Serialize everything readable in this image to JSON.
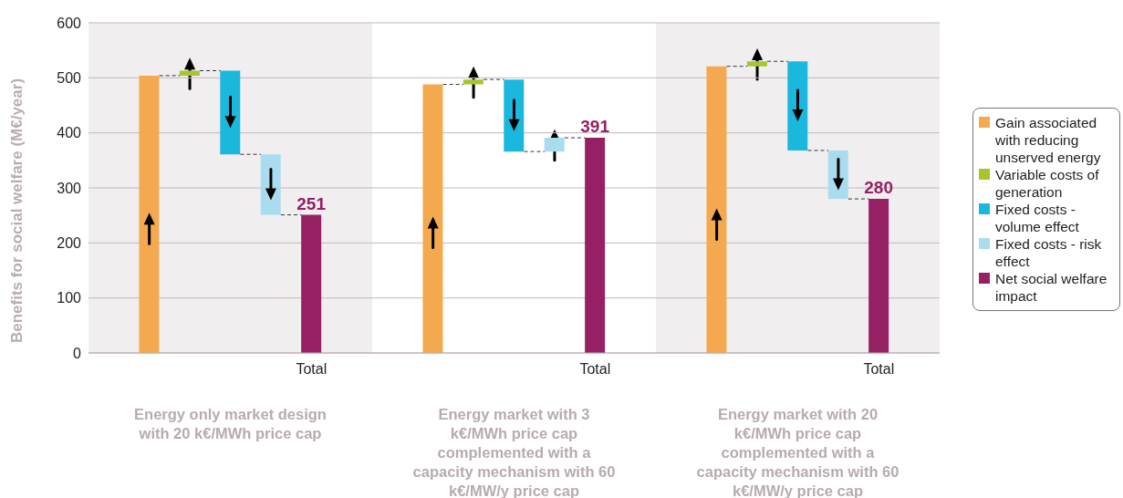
{
  "chart_data": {
    "type": "bar",
    "ylabel": "Benefits for social welfare (M€/year)",
    "categories": [
      null,
      null,
      null,
      null,
      null,
      "Total",
      null,
      null,
      null,
      null,
      null,
      null,
      "Total",
      null,
      null,
      null,
      null,
      null,
      null,
      "Total",
      null
    ],
    "series": [
      {
        "name": "Gain associated with reducing unserved energy",
        "color": "#f5a94f",
        "values": [
          null,
          504,
          null,
          null,
          null,
          null,
          null,
          null,
          488,
          null,
          null,
          null,
          null,
          null,
          null,
          521,
          null,
          null,
          null,
          null,
          null
        ]
      },
      {
        "name": "Variable costs of generation",
        "color": "#a6c52f",
        "values": [
          null,
          null,
          9,
          null,
          null,
          null,
          null,
          null,
          null,
          9,
          null,
          null,
          null,
          null,
          null,
          null,
          9,
          null,
          null,
          null,
          null
        ],
        "base": [
          null,
          null,
          504,
          null,
          null,
          null,
          null,
          null,
          null,
          488,
          null,
          null,
          null,
          null,
          null,
          null,
          521,
          null,
          null,
          null,
          null
        ]
      },
      {
        "name": "Fixed costs - volume effect",
        "color": "#1bb8dd",
        "values": [
          null,
          null,
          null,
          -152,
          null,
          null,
          null,
          null,
          null,
          null,
          -131,
          null,
          null,
          null,
          null,
          null,
          null,
          -162,
          null,
          null,
          null
        ],
        "base": [
          null,
          null,
          null,
          513,
          null,
          null,
          null,
          null,
          null,
          null,
          497,
          null,
          null,
          null,
          null,
          null,
          null,
          530,
          null,
          null,
          null
        ]
      },
      {
        "name": "Fixed costs - risk effect",
        "color": "#aadcf0",
        "values": [
          null,
          null,
          null,
          null,
          -110,
          null,
          null,
          null,
          null,
          null,
          null,
          25,
          null,
          null,
          null,
          null,
          null,
          null,
          -88,
          null,
          null
        ],
        "base": [
          null,
          null,
          null,
          null,
          361,
          null,
          null,
          null,
          null,
          null,
          null,
          366,
          null,
          null,
          null,
          null,
          null,
          null,
          368,
          null,
          null
        ]
      },
      {
        "name": "Net social welfare impact",
        "color": "#952064",
        "values": [
          null,
          null,
          null,
          null,
          null,
          251,
          null,
          null,
          null,
          null,
          null,
          null,
          391,
          null,
          null,
          null,
          null,
          null,
          null,
          280,
          null
        ],
        "value_labels": [
          null,
          null,
          null,
          null,
          null,
          "251",
          null,
          null,
          null,
          null,
          null,
          null,
          "391",
          null,
          null,
          null,
          null,
          null,
          null,
          "280",
          null
        ]
      }
    ],
    "ylim": [
      0,
      600
    ],
    "yticks": [
      0,
      100,
      200,
      300,
      400,
      500,
      600
    ],
    "grid": "y",
    "legend": "right",
    "annotations": [
      "Energy only market design with 20 k€/MWh price cap",
      "Energy market with 3 k€/MWh price cap complemented with a capacity mechanism with 60 k€/MW/y price cap",
      "Energy market with 20 k€/MWh price cap complemented with a capacity mechanism with 60 k€/MW/y price cap"
    ]
  }
}
